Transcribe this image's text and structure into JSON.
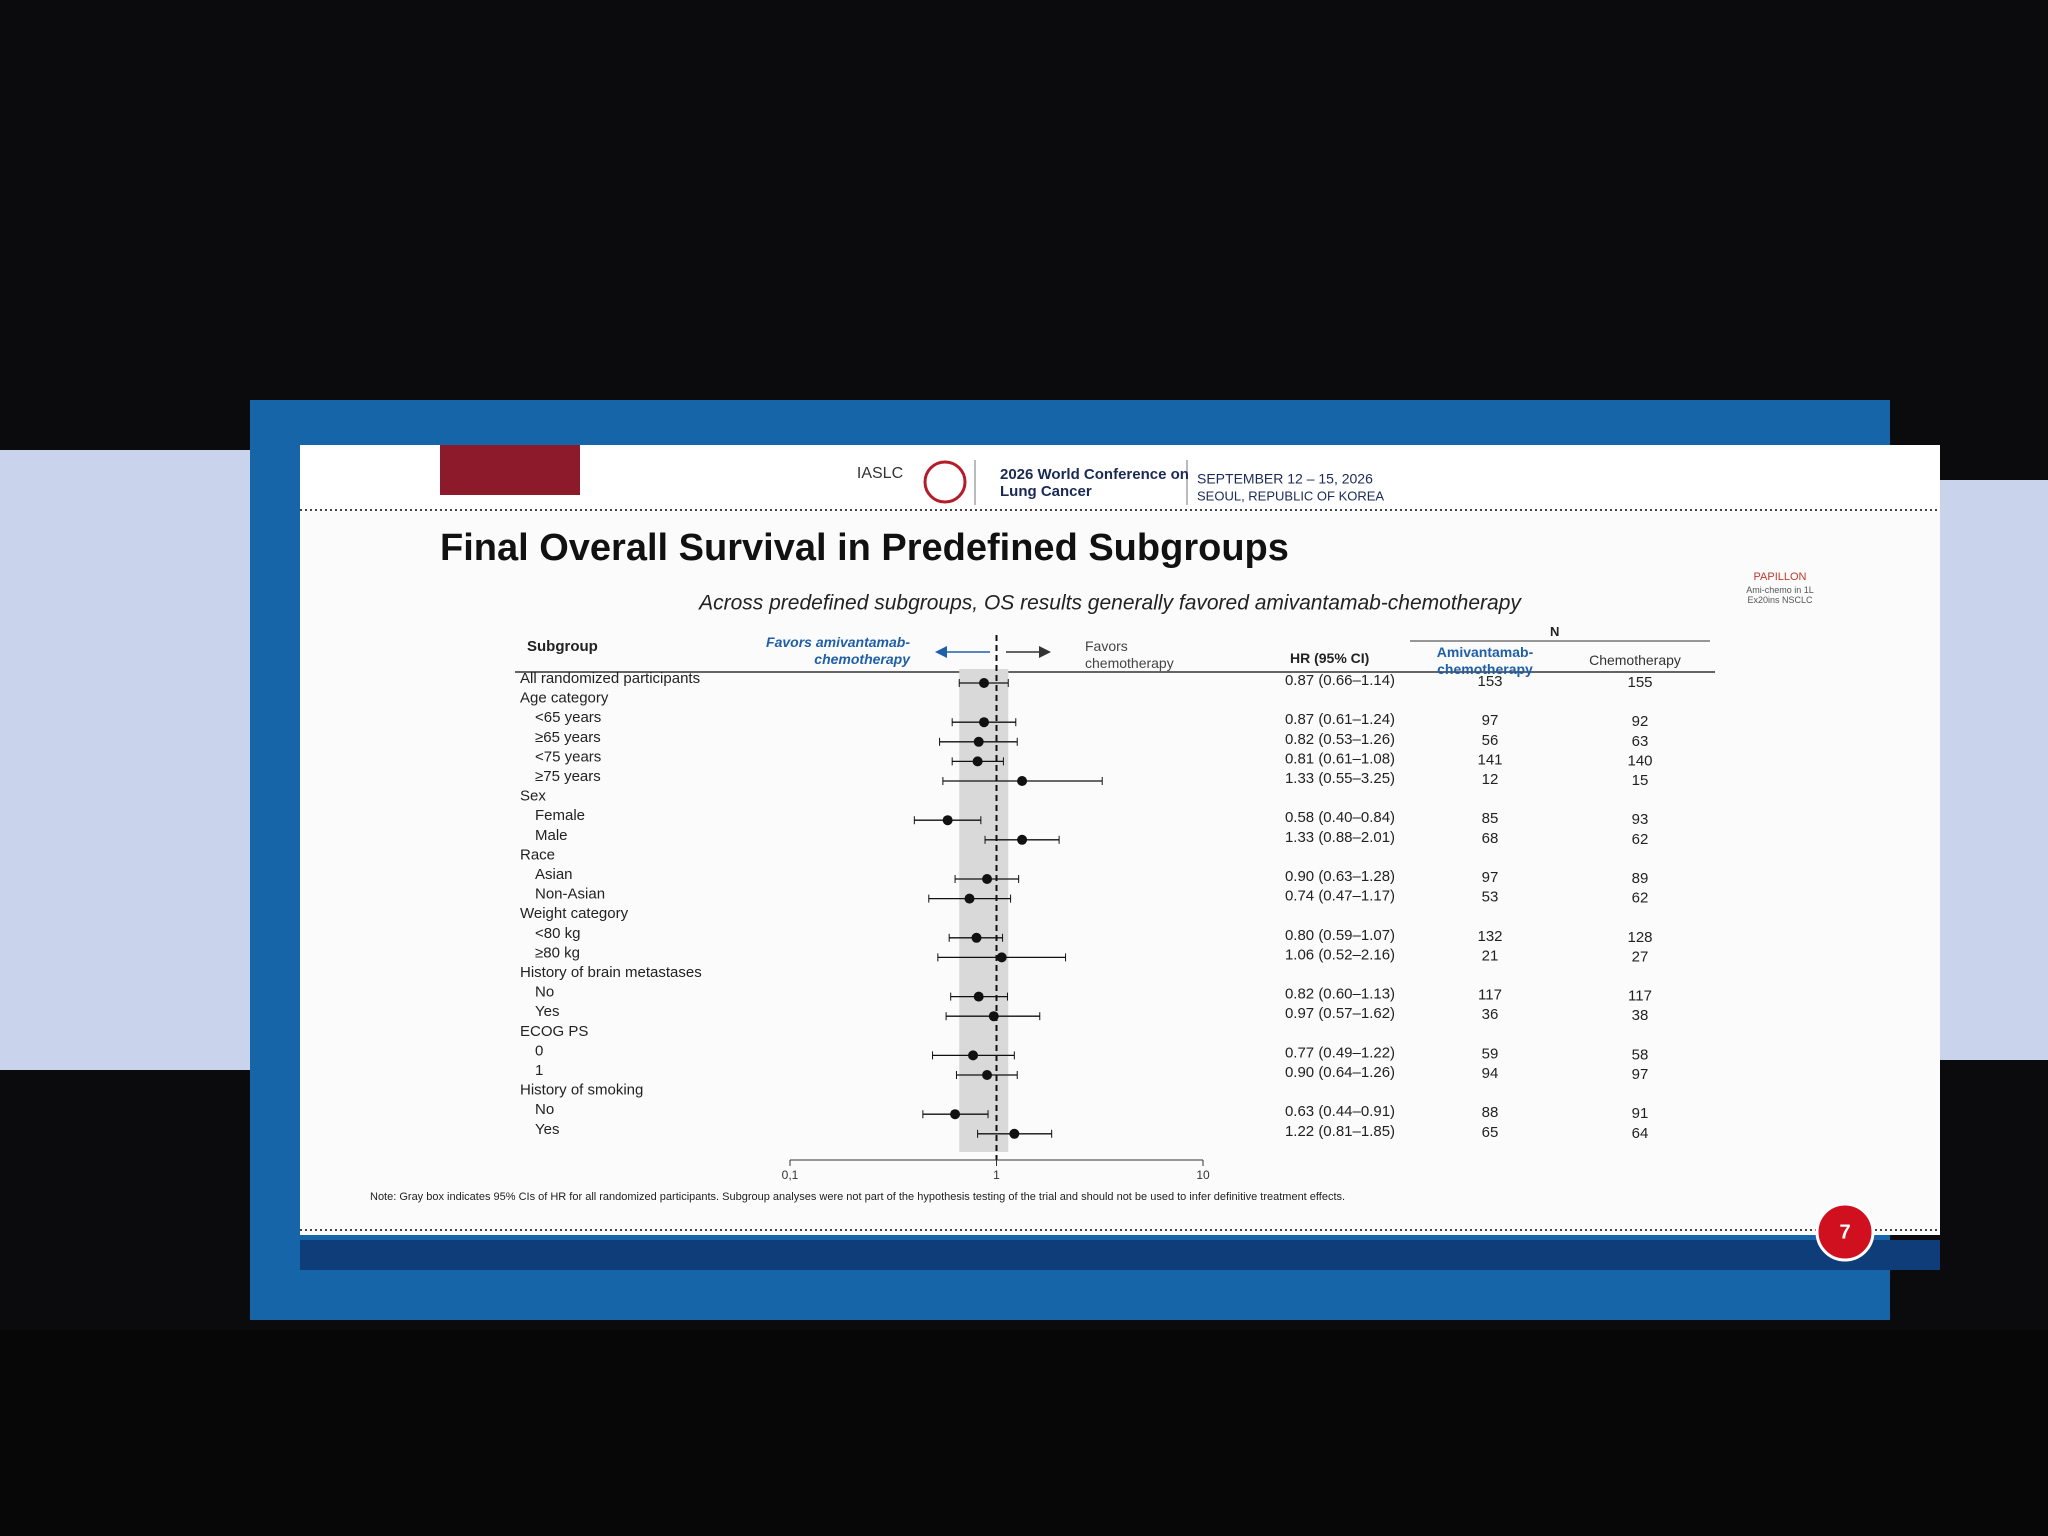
{
  "header": {
    "org": "IASLC",
    "conference": "2026 World Conference on Lung Cancer",
    "dates": "SEPTEMBER 12 – 15, 2026",
    "location": "SEOUL, REPUBLIC OF KOREA",
    "study": "PAPILLON",
    "study_desc": "Ami-chemo in 1L Ex20ins NSCLC"
  },
  "chart_data": {
    "type": "forest",
    "title": "Final Overall Survival in Predefined Subgroups",
    "subtitle": "Across predefined subgroups, OS results generally favored amivantamab-chemotherapy",
    "column_headers": {
      "subgroup": "Subgroup",
      "favors_left": "Favors amivantamab-chemotherapy",
      "favors_right": "Favors chemotherapy",
      "hr": "HR (95% CI)",
      "n": "N",
      "n_left": "Amivantamab-chemotherapy",
      "n_right": "Chemotherapy"
    },
    "categories": [
      "All randomized participants",
      "Age category",
      "<65 years",
      "≥65 years",
      "<75 years",
      "≥75 years",
      "Sex",
      "Female",
      "Male",
      "Race",
      "Asian",
      "Non-Asian",
      "Weight category",
      "<80 kg",
      "≥80 kg",
      "History of brain metastases",
      "No",
      "Yes",
      "ECOG PS",
      "0",
      "1",
      "History of smoking",
      "No",
      "Yes"
    ],
    "hr": [
      0.87,
      null,
      0.87,
      0.82,
      0.81,
      1.33,
      null,
      0.58,
      1.33,
      null,
      0.9,
      0.74,
      null,
      0.8,
      1.06,
      null,
      0.82,
      0.97,
      null,
      0.77,
      0.9,
      null,
      0.63,
      1.22
    ],
    "lower": [
      0.66,
      null,
      0.61,
      0.53,
      0.61,
      0.55,
      null,
      0.4,
      0.88,
      null,
      0.63,
      0.47,
      null,
      0.59,
      0.52,
      null,
      0.6,
      0.57,
      null,
      0.49,
      0.64,
      null,
      0.44,
      0.81
    ],
    "upper": [
      1.14,
      null,
      1.24,
      1.26,
      1.08,
      3.25,
      null,
      0.84,
      2.01,
      null,
      1.28,
      1.17,
      null,
      1.07,
      2.16,
      null,
      1.13,
      1.62,
      null,
      1.22,
      1.26,
      null,
      0.91,
      1.85
    ],
    "hr_labels": [
      "0.87 (0.66–1.14)",
      null,
      "0.87 (0.61–1.24)",
      "0.82 (0.53–1.26)",
      "0.81 (0.61–1.08)",
      "1.33 (0.55–3.25)",
      null,
      "0.58 (0.40–0.84)",
      "1.33 (0.88–2.01)",
      null,
      "0.90 (0.63–1.28)",
      "0.74 (0.47–1.17)",
      null,
      "0.80 (0.59–1.07)",
      "1.06 (0.52–2.16)",
      null,
      "0.82 (0.60–1.13)",
      "0.97 (0.57–1.62)",
      null,
      "0.77 (0.49–1.22)",
      "0.90 (0.64–1.26)",
      null,
      "0.63 (0.44–0.91)",
      "1.22 (0.81–1.85)"
    ],
    "n_left": [
      153,
      null,
      97,
      56,
      141,
      12,
      null,
      85,
      68,
      null,
      97,
      53,
      null,
      132,
      21,
      null,
      117,
      36,
      null,
      59,
      94,
      null,
      88,
      65
    ],
    "n_right": [
      155,
      null,
      92,
      63,
      140,
      15,
      null,
      93,
      62,
      null,
      89,
      62,
      null,
      128,
      27,
      null,
      117,
      38,
      null,
      58,
      97,
      null,
      91,
      64
    ],
    "xscale": "log",
    "xlim": [
      0.1,
      10
    ],
    "xticks": [
      {
        "value": 0.1,
        "label": "0,1"
      },
      1,
      10
    ],
    "color": "#111111",
    "left_color": "#1f5fa8",
    "note": "Note: Gray box indicates 95% CIs of HR for all randomized participants. Subgroup analyses were not part of the hypothesis testing of the trial and should not be used to infer definitive treatment effects."
  },
  "page_number": 7
}
